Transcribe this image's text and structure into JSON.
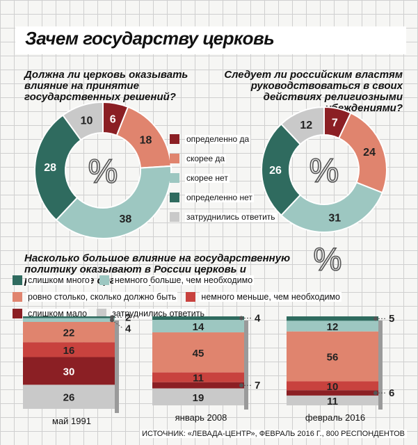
{
  "title": "Зачем государству церковь",
  "q1": "Должна ли церковь оказывать влияние на принятие государственных решений?",
  "q2": "Следует ли российским властям руководствоваться в своих действиях религиозными убеждениями?",
  "q3": "Насколько большое влияние на государственную политику оказывают в России церковь и религиозные организации?",
  "percent_sign": "%",
  "legend1": [
    {
      "label": "определенно да",
      "color": "#8b1f24"
    },
    {
      "label": "скорее да",
      "color": "#e0846e"
    },
    {
      "label": "скорее нет",
      "color": "#9dc7c1"
    },
    {
      "label": "определенно нет",
      "color": "#2f6b5f"
    },
    {
      "label": "затруднились ответить",
      "color": "#c9c9c9"
    }
  ],
  "legend2": [
    {
      "label": "слишком много",
      "color": "#2f6b5f"
    },
    {
      "label": "немного больше, чем необходимо",
      "color": "#9dc7c1"
    },
    {
      "label": "ровно столько, сколько должно быть",
      "color": "#e0846e"
    },
    {
      "label": "немного меньше, чем необходимо",
      "color": "#c8423e"
    },
    {
      "label": "слишком мало",
      "color": "#8b1f24"
    },
    {
      "label": "затруднились ответить",
      "color": "#c9c9c9"
    }
  ],
  "source": "ИСТОЧНИК: «ЛЕВАДА-ЦЕНТР», ФЕВРАЛЬ 2016 Г., 800 РЕСПОНДЕНТОВ",
  "chart_data": [
    {
      "type": "pie",
      "title": "Должна ли церковь оказывать влияние на принятие государственных решений?",
      "categories": [
        "определенно да",
        "скорее да",
        "скорее нет",
        "определенно нет",
        "затруднились ответить"
      ],
      "values": [
        6,
        18,
        38,
        28,
        10
      ],
      "colors": [
        "#8b1f24",
        "#e0846e",
        "#9dc7c1",
        "#2f6b5f",
        "#c9c9c9"
      ]
    },
    {
      "type": "pie",
      "title": "Следует ли российским властям руководствоваться в своих действиях религиозными убеждениями?",
      "categories": [
        "определенно да",
        "скорее да",
        "скорее нет",
        "определенно нет",
        "затруднились ответить"
      ],
      "values": [
        7,
        24,
        31,
        26,
        12
      ],
      "colors": [
        "#8b1f24",
        "#e0846e",
        "#9dc7c1",
        "#2f6b5f",
        "#c9c9c9"
      ]
    },
    {
      "type": "bar",
      "stacked": true,
      "title": "Насколько большое влияние на государственную политику оказывают в России церковь и религиозные организации?",
      "categories": [
        "май 1991",
        "январь 2008",
        "февраль 2016"
      ],
      "series": [
        {
          "name": "слишком много",
          "values": [
            2,
            4,
            5
          ],
          "color": "#2f6b5f"
        },
        {
          "name": "немного больше, чем необходимо",
          "values": [
            4,
            14,
            12
          ],
          "color": "#9dc7c1"
        },
        {
          "name": "ровно столько, сколько должно быть",
          "values": [
            22,
            45,
            56
          ],
          "color": "#e0846e"
        },
        {
          "name": "немного меньше, чем необходимо",
          "values": [
            16,
            11,
            10
          ],
          "color": "#c8423e"
        },
        {
          "name": "слишком мало",
          "values": [
            30,
            7,
            6
          ],
          "color": "#8b1f24"
        },
        {
          "name": "затруднились ответить",
          "values": [
            26,
            19,
            11
          ],
          "color": "#c9c9c9"
        }
      ]
    }
  ]
}
